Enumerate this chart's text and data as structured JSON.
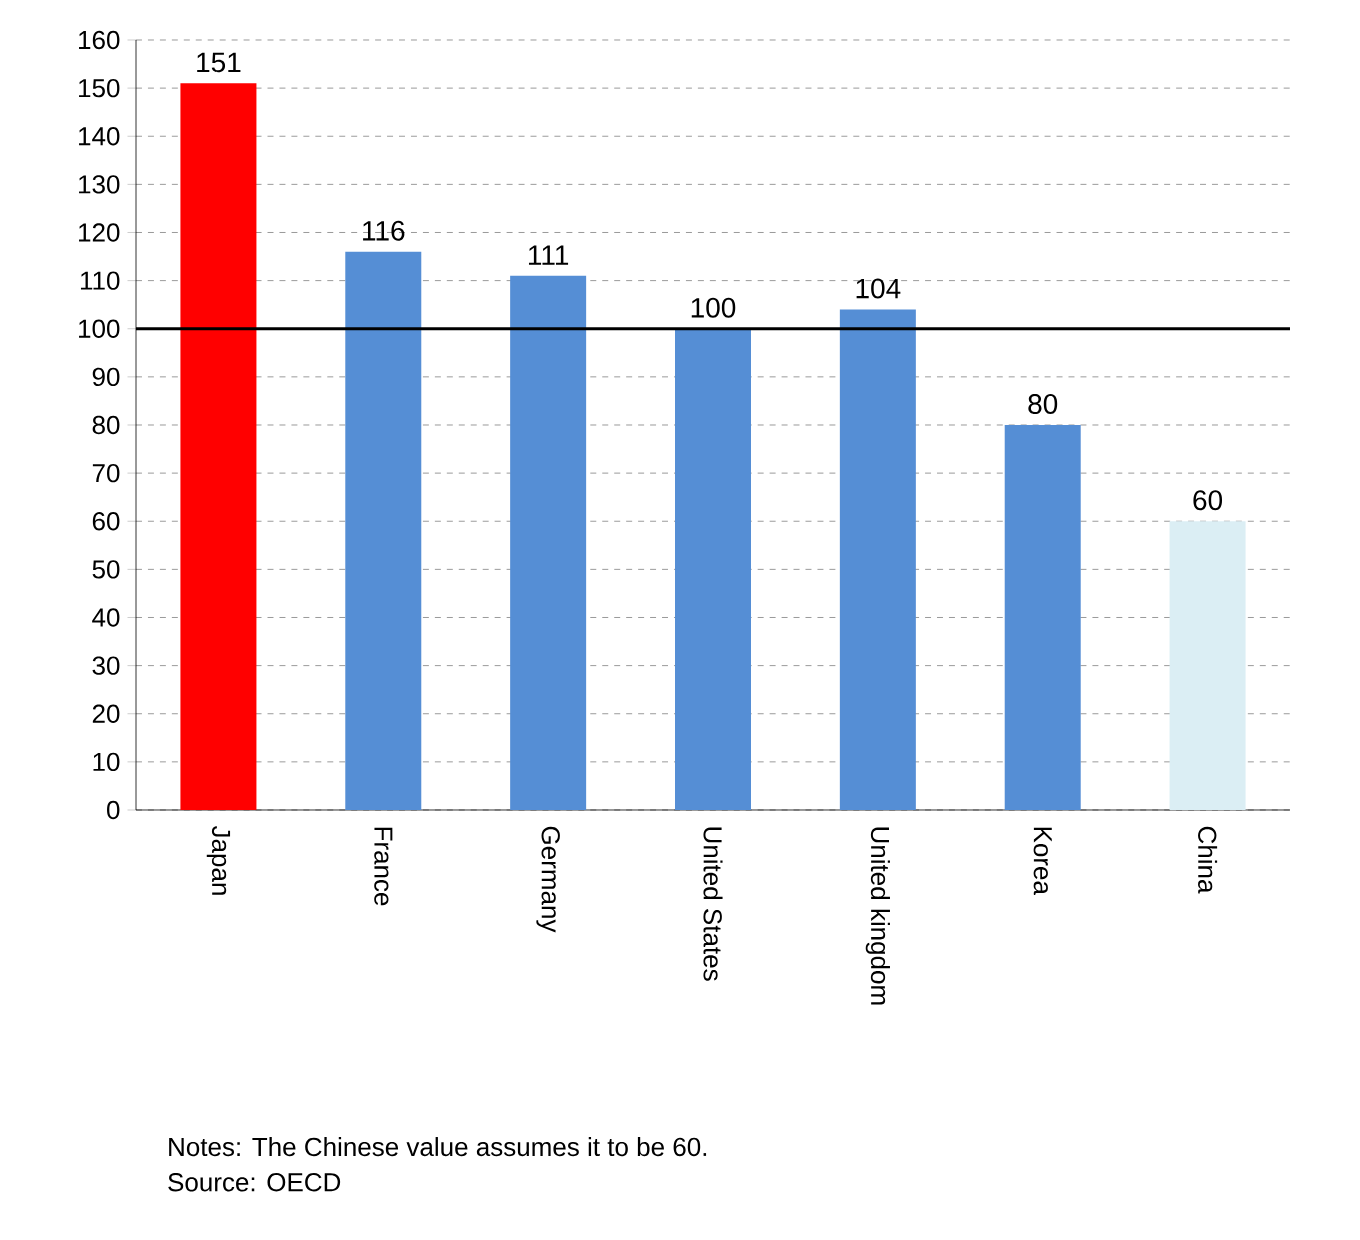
{
  "chart_data": {
    "type": "bar",
    "categories": [
      "Japan",
      "France",
      "Germany",
      "United States",
      "United kingdom",
      "Korea",
      "China"
    ],
    "values": [
      151,
      116,
      111,
      100,
      104,
      80,
      60
    ],
    "colors": [
      "#ff0000",
      "#558ed5",
      "#558ed5",
      "#558ed5",
      "#558ed5",
      "#558ed5",
      "#dbeef4"
    ],
    "ylim": [
      0,
      160
    ],
    "yticks": [
      0,
      10,
      20,
      30,
      40,
      50,
      60,
      70,
      80,
      90,
      100,
      110,
      120,
      130,
      140,
      150,
      160
    ],
    "grid": "y",
    "data_labels": true,
    "ref_lines": [
      {
        "axis": "y",
        "value": 100,
        "color": "#000000"
      }
    ],
    "annotations": [
      "Notes:  The Chinese value assumes it to be 60.",
      "Source: OECD"
    ]
  }
}
